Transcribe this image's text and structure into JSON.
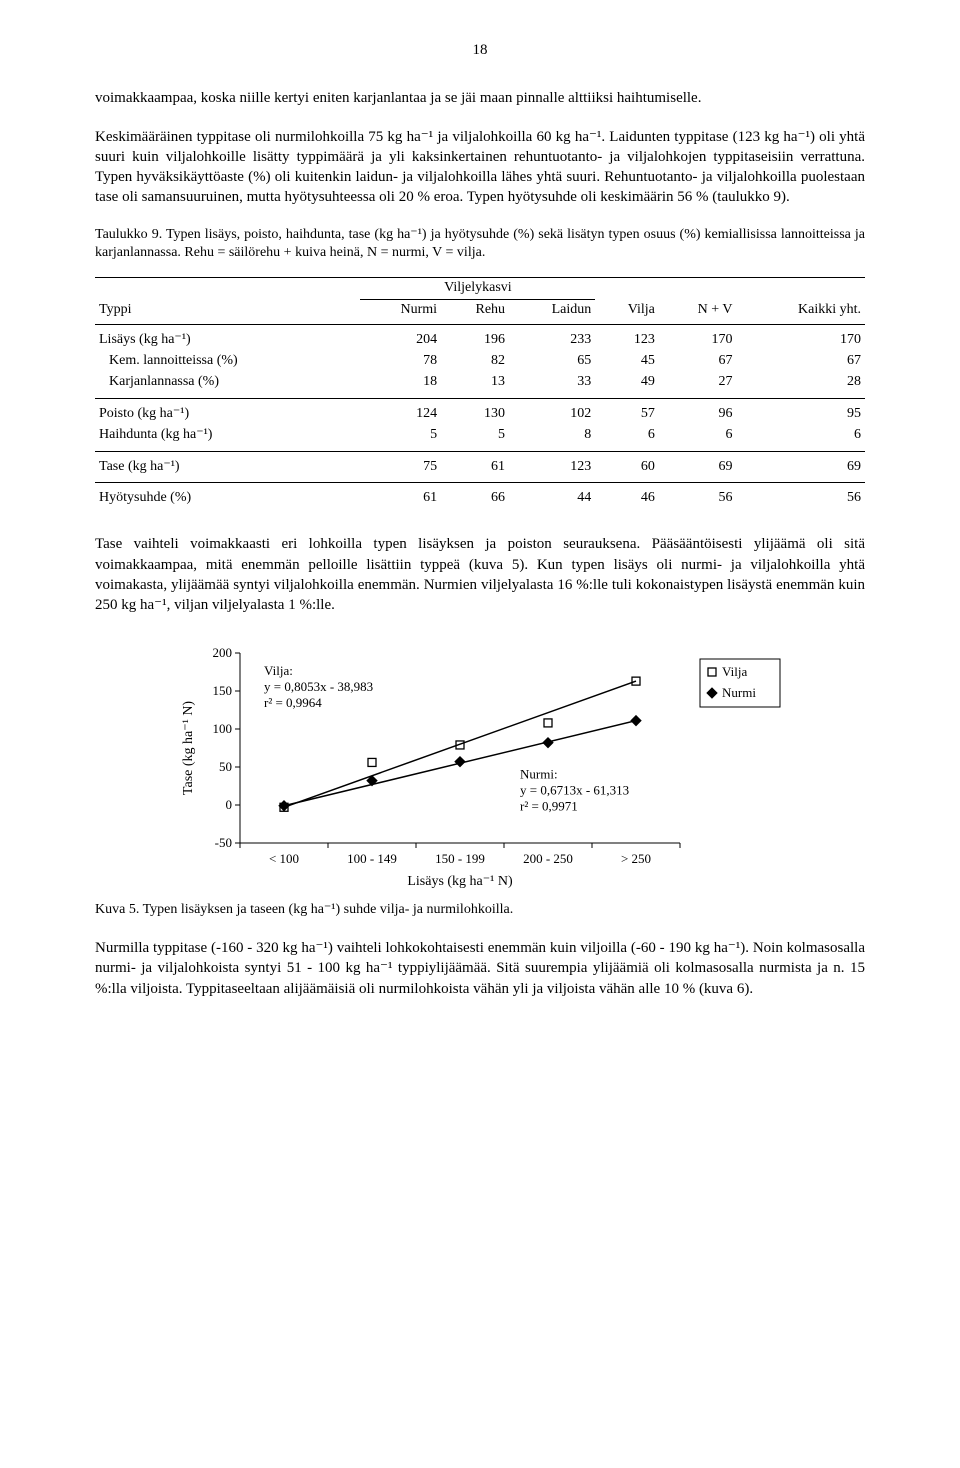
{
  "page_number": "18",
  "para1": "voimakkaampaa, koska niille kertyi eniten karjanlantaa ja se jäi maan pinnalle alttiiksi haihtumiselle.",
  "para2": "Keskimääräinen typpitase oli nurmilohkoilla 75 kg ha⁻¹ ja viljalohkoilla 60 kg ha⁻¹. Laidunten typpitase (123 kg ha⁻¹) oli yhtä suuri kuin viljalohkoille lisätty typpimäärä ja yli kaksinkertainen rehuntuotanto- ja viljalohkojen typpitaseisiin verrattuna. Typen hyväksikäyttöaste (%) oli kuitenkin laidun- ja viljalohkoilla lähes yhtä suuri. Rehun­tuotanto- ja viljalohkoilla puolestaan tase oli samansuuruinen, mutta hyötysuhteessa oli 20 % eroa. Typen hyötysuhde oli keskimäärin 56 % (taulukko 9).",
  "table9_caption": "Taulukko 9. Typen lisäys, poisto, haihdunta, tase (kg ha⁻¹) ja hyötysuhde (%) sekä lisätyn typen osuus (%) kemiallisissa lannoitteissa ja karjanlannassa. Rehu = säilörehu + kuiva heinä, N = nurmi, V = vilja.",
  "table9": {
    "group_header": "Viljelykasvi",
    "columns": [
      "Typpi",
      "Nurmi",
      "Rehu",
      "Laidun",
      "Vilja",
      "N + V",
      "Kaikki yht."
    ],
    "rows": [
      {
        "label": "Lisäys (kg ha⁻¹)",
        "v": [
          "204",
          "196",
          "233",
          "123",
          "170",
          "170"
        ],
        "top": true
      },
      {
        "label": "Kem. lannoitteissa (%)",
        "v": [
          "78",
          "82",
          "65",
          "45",
          "67",
          "67"
        ],
        "indent": true
      },
      {
        "label": "Karjanlannassa (%)",
        "v": [
          "18",
          "13",
          "33",
          "49",
          "27",
          "28"
        ],
        "indent": true,
        "end": true
      },
      {
        "label": "Poisto (kg ha⁻¹)",
        "v": [
          "124",
          "130",
          "102",
          "57",
          "96",
          "95"
        ],
        "top": true
      },
      {
        "label": "Haihdunta (kg ha⁻¹)",
        "v": [
          "5",
          "5",
          "8",
          "6",
          "6",
          "6"
        ],
        "end": true
      },
      {
        "label": "Tase (kg ha⁻¹)",
        "v": [
          "75",
          "61",
          "123",
          "60",
          "69",
          "69"
        ],
        "top": true,
        "end": true
      },
      {
        "label": "Hyötysuhde (%)",
        "v": [
          "61",
          "66",
          "44",
          "46",
          "56",
          "56"
        ],
        "top": true,
        "end": true
      }
    ]
  },
  "para3": "Tase vaihteli voimakkaasti eri lohkoilla typen lisäyksen ja poiston seurauksena. Pääsääntöisesti ylijäämä oli sitä voimakkaampaa, mitä enemmän pelloille lisättiin typpeä (kuva 5). Kun typen lisäys oli nurmi- ja viljalohkoilla yhtä voimakasta, yli­jäämää syntyi viljalohkoilla enemmän. Nurmien viljelyalasta 16 %:lle tuli kokonais­typen lisäystä enemmän kuin 250 kg ha⁻¹, viljan viljelyalasta 1 %:lle.",
  "chart": {
    "type": "scatter-line",
    "x_categories": [
      "< 100",
      "100 - 149",
      "150 - 199",
      "200 - 250",
      "> 250"
    ],
    "series": [
      {
        "name": "Vilja",
        "marker": "square",
        "values_y": [
          -3,
          56,
          79,
          108,
          163
        ]
      },
      {
        "name": "Nurmi",
        "marker": "diamond",
        "values_y": [
          -1,
          32,
          57,
          82,
          111
        ]
      }
    ],
    "y_label": "Tase (kg ha⁻¹ N)",
    "x_label": "Lisäys (kg ha⁻¹ N)",
    "ylim": [
      -50,
      200
    ],
    "ytick_step": 50,
    "vilja_anno_lines": [
      "Vilja:",
      "y = 0,8053x - 38,983",
      "r² = 0,9964"
    ],
    "nurmi_anno_lines": [
      "Nurmi:",
      "y = 0,6713x - 61,313",
      "r² = 0,9971"
    ],
    "legend_items": [
      "Vilja",
      "Nurmi"
    ],
    "colors": {
      "axis": "#000000",
      "line": "#000000",
      "background": "#ffffff",
      "marker_fill_square": "none",
      "marker_fill_diamond": "#000000"
    },
    "line_width": 1.5,
    "marker_size": 8,
    "font": "Times New Roman",
    "font_size_pt": 12
  },
  "kuva5_caption": "Kuva 5. Typen lisäyksen ja taseen (kg ha⁻¹) suhde vilja- ja nurmilohkoilla.",
  "para4": "Nurmilla typpitase (-160 - 320 kg ha⁻¹) vaihteli lohkokohtaisesti enemmän kuin viljoilla (-60 - 190 kg ha⁻¹). Noin kolmasosalla nurmi- ja viljalohkoista syntyi 51 - 100 kg ha⁻¹ typpiylijäämää. Sitä suurempia ylijäämiä oli kolmasosalla nurmista ja n. 15 %:lla viljoista. Typpitaseeltaan alijäämäisiä oli nurmilohkoista vähän yli ja viljoista vähän alle 10 % (kuva 6)."
}
